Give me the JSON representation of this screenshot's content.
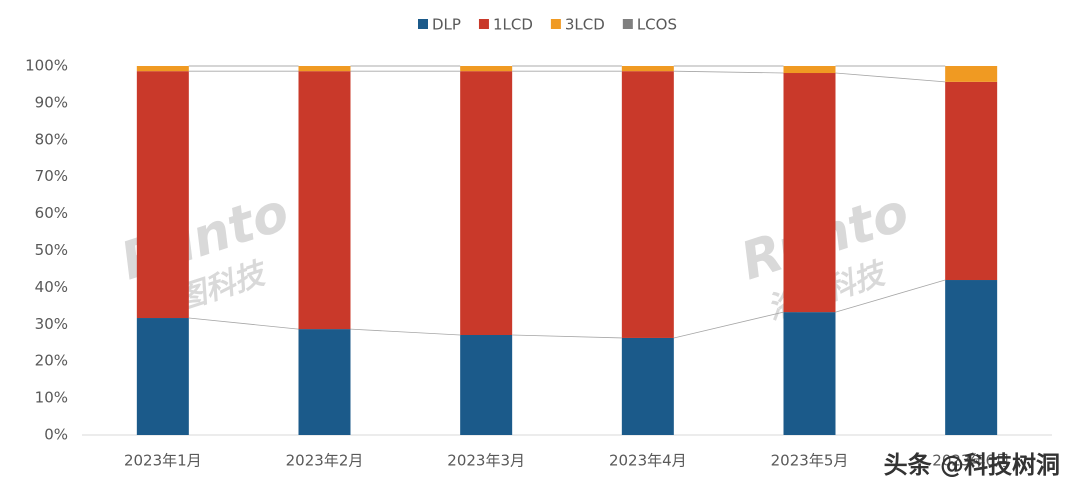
{
  "chart_data": {
    "type": "stacked-bar",
    "categories": [
      "2023年1月",
      "2023年2月",
      "2023年3月",
      "2023年4月",
      "2023年5月",
      "2023年6月"
    ],
    "series": [
      {
        "name": "DLP",
        "color": "#1b5a8a",
        "values": [
          31.7,
          28.7,
          27.1,
          26.3,
          33.3,
          42.0
        ]
      },
      {
        "name": "1LCD",
        "color": "#c9392a",
        "values": [
          66.9,
          69.9,
          71.5,
          72.3,
          64.8,
          53.7
        ]
      },
      {
        "name": "3LCD",
        "color": "#f09a22",
        "values": [
          1.4,
          1.4,
          1.4,
          1.4,
          1.9,
          4.3
        ]
      },
      {
        "name": "LCOS",
        "color": "#7f7f7f",
        "values": [
          0,
          0,
          0,
          0,
          0,
          0
        ]
      }
    ],
    "ylim": [
      0,
      100
    ],
    "yticks": [
      {
        "value": 0,
        "label": "0%"
      },
      {
        "value": 10,
        "label": "10%"
      },
      {
        "value": 20,
        "label": "20%"
      },
      {
        "value": 30,
        "label": "30%"
      },
      {
        "value": 40,
        "label": "40%"
      },
      {
        "value": 50,
        "label": "50%"
      },
      {
        "value": 60,
        "label": "60%"
      },
      {
        "value": 70,
        "label": "70%"
      },
      {
        "value": 80,
        "label": "80%"
      },
      {
        "value": 90,
        "label": "90%"
      },
      {
        "value": 100,
        "label": "100%"
      }
    ],
    "series_lines": true,
    "watermark": {
      "brand": "Runto",
      "name": "洛图科技",
      "source": "头条 @科技树洞"
    }
  }
}
